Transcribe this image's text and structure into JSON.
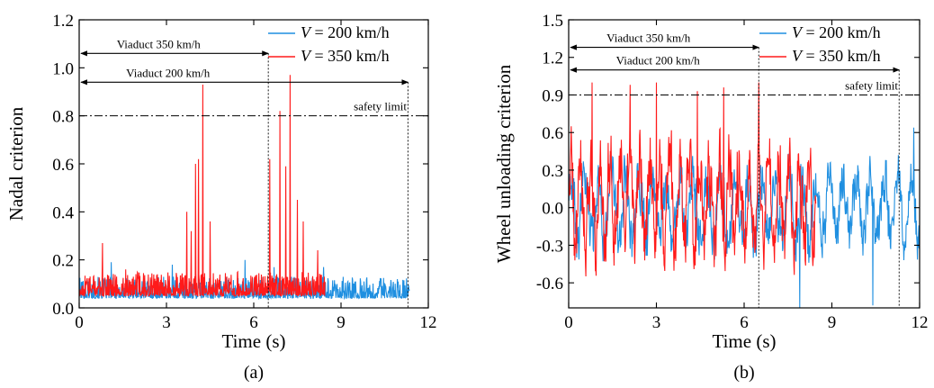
{
  "chart_data": [
    {
      "type": "line",
      "panel_label": "(a)",
      "xlabel": "Time (s)",
      "ylabel": "Nadal criterion",
      "xlim": [
        0,
        12
      ],
      "ylim": [
        0,
        1.2
      ],
      "xticks": [
        0,
        3,
        6,
        9,
        12
      ],
      "yticks": [
        0.0,
        0.2,
        0.4,
        0.6,
        0.8,
        1.0,
        1.2
      ],
      "ytick_labels": [
        "0.0",
        "0.2",
        "0.4",
        "0.6",
        "0.8",
        "1.0",
        "1.2"
      ],
      "grid": false,
      "legend_position": "top-right",
      "series": [
        {
          "name": "V = 200 km/h",
          "color": "#1f8fe0",
          "duration": 11.35,
          "base": 0.04,
          "spread": 0.09,
          "peaks": [
            [
              1.1,
              0.19
            ],
            [
              3.2,
              0.18
            ],
            [
              5.7,
              0.2
            ],
            [
              6.7,
              0.17
            ],
            [
              8.4,
              0.17
            ],
            [
              9.5,
              0.11
            ],
            [
              10.3,
              0.09
            ]
          ]
        },
        {
          "name": "V = 350 km/h",
          "color": "#ff1a1a",
          "duration": 8.45,
          "base": 0.05,
          "spread": 0.1,
          "peaks": [
            [
              0.8,
              0.27
            ],
            [
              1.6,
              0.16
            ],
            [
              3.7,
              0.4
            ],
            [
              3.85,
              0.32
            ],
            [
              4.0,
              0.6
            ],
            [
              4.1,
              0.62
            ],
            [
              4.25,
              0.93
            ],
            [
              4.5,
              0.36
            ],
            [
              6.55,
              0.62
            ],
            [
              6.9,
              0.82
            ],
            [
              7.1,
              0.59
            ],
            [
              7.25,
              0.97
            ],
            [
              7.5,
              0.45
            ],
            [
              7.7,
              0.36
            ],
            [
              8.2,
              0.24
            ]
          ]
        }
      ],
      "reference_lines": [
        {
          "label": "safety limit",
          "y": 0.8
        }
      ],
      "spans": [
        {
          "label": "Viaduct 350 km/h",
          "x_end": 6.5,
          "y": 1.06
        },
        {
          "label": "Viaduct 200 km/h",
          "x_end": 11.3,
          "y": 0.94
        }
      ]
    },
    {
      "type": "line",
      "panel_label": "(b)",
      "xlabel": "Time (s)",
      "ylabel": "Wheel unloading criterion",
      "xlim": [
        0,
        12
      ],
      "ylim": [
        -0.8,
        1.5
      ],
      "xticks": [
        0,
        3,
        6,
        9,
        12
      ],
      "yticks": [
        -0.6,
        -0.3,
        0.0,
        0.3,
        0.6,
        0.9,
        1.2,
        1.5
      ],
      "ytick_labels": [
        "-0.6",
        "-0.3",
        "0.0",
        "0.3",
        "0.6",
        "0.9",
        "1.2",
        "1.5"
      ],
      "grid": false,
      "legend_position": "top-right",
      "series": [
        {
          "name": "V = 200 km/h",
          "color": "#1f8fe0",
          "duration": 12,
          "base": 0.0,
          "spread": 0.6,
          "peaks": [
            [
              7.9,
              -0.8
            ],
            [
              10.4,
              -0.78
            ],
            [
              11.8,
              0.64
            ]
          ]
        },
        {
          "name": "V = 350 km/h",
          "color": "#ff1a1a",
          "duration": 8.45,
          "base": 0.05,
          "spread": 0.8,
          "peaks": [
            [
              0.8,
              1.0
            ],
            [
              2.1,
              0.98
            ],
            [
              3.0,
              1.0
            ],
            [
              4.4,
              0.93
            ],
            [
              5.3,
              0.96
            ],
            [
              6.5,
              1.0
            ]
          ]
        }
      ],
      "reference_lines": [
        {
          "label": "safety limit",
          "y": 0.9
        }
      ],
      "spans": [
        {
          "label": "Viaduct 350 km/h",
          "x_end": 6.5,
          "y": 1.28
        },
        {
          "label": "Viaduct 200 km/h",
          "x_end": 11.3,
          "y": 1.1
        }
      ]
    }
  ]
}
